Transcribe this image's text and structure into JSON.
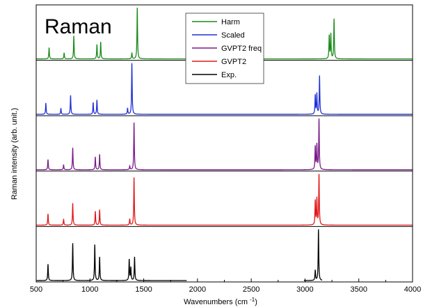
{
  "chart_data": {
    "type": "line",
    "title": "Raman",
    "xlabel": "Wavenumbers (cm -1)",
    "ylabel": "Raman intensity (arb. unit.)",
    "xlim": [
      500,
      4000
    ],
    "x_ticks": [
      500,
      1000,
      1500,
      2000,
      2500,
      3000,
      3500,
      4000
    ],
    "x_tick_labels": [
      "500",
      "1000",
      "1500",
      "2000",
      "2500",
      "3000",
      "3500",
      "4000"
    ],
    "y_ticks_shown": false,
    "grid": false,
    "stacked": true,
    "panel_separators": true,
    "legend": {
      "placement": "top-center",
      "order": [
        "Harm",
        "Scaled",
        "GVPT2 freq",
        "GVPT2",
        "Exp."
      ]
    },
    "series": [
      {
        "name": "Harm",
        "color": "#1a8a1a",
        "range": [
          500,
          4000
        ],
        "peaks": [
          {
            "x": 620,
            "y": 0.22
          },
          {
            "x": 760,
            "y": 0.12
          },
          {
            "x": 850,
            "y": 0.45
          },
          {
            "x": 1065,
            "y": 0.28
          },
          {
            "x": 1100,
            "y": 0.33
          },
          {
            "x": 1390,
            "y": 0.12
          },
          {
            "x": 1440,
            "y": 1.0
          },
          {
            "x": 3225,
            "y": 0.45
          },
          {
            "x": 3240,
            "y": 0.48
          },
          {
            "x": 3270,
            "y": 0.78
          }
        ]
      },
      {
        "name": "Scaled",
        "color": "#1f2fd6",
        "range": [
          500,
          4000
        ],
        "peaks": [
          {
            "x": 590,
            "y": 0.22
          },
          {
            "x": 730,
            "y": 0.12
          },
          {
            "x": 820,
            "y": 0.37
          },
          {
            "x": 1030,
            "y": 0.23
          },
          {
            "x": 1065,
            "y": 0.28
          },
          {
            "x": 1350,
            "y": 0.12
          },
          {
            "x": 1390,
            "y": 1.0
          },
          {
            "x": 3095,
            "y": 0.37
          },
          {
            "x": 3110,
            "y": 0.4
          },
          {
            "x": 3135,
            "y": 0.75
          }
        ]
      },
      {
        "name": "GVPT2 freq",
        "color": "#7a1a8a",
        "range": [
          500,
          4000
        ],
        "peaks": [
          {
            "x": 610,
            "y": 0.2
          },
          {
            "x": 755,
            "y": 0.1
          },
          {
            "x": 840,
            "y": 0.43
          },
          {
            "x": 1050,
            "y": 0.25
          },
          {
            "x": 1090,
            "y": 0.3
          },
          {
            "x": 1370,
            "y": 0.07
          },
          {
            "x": 1410,
            "y": 0.92
          },
          {
            "x": 3095,
            "y": 0.45
          },
          {
            "x": 3110,
            "y": 0.48
          },
          {
            "x": 3130,
            "y": 1.0
          }
        ]
      },
      {
        "name": "GVPT2",
        "color": "#e01818",
        "range": [
          500,
          4000
        ],
        "peaks": [
          {
            "x": 610,
            "y": 0.22
          },
          {
            "x": 755,
            "y": 0.12
          },
          {
            "x": 840,
            "y": 0.43
          },
          {
            "x": 1050,
            "y": 0.27
          },
          {
            "x": 1090,
            "y": 0.3
          },
          {
            "x": 1370,
            "y": 0.12
          },
          {
            "x": 1410,
            "y": 0.93
          },
          {
            "x": 3095,
            "y": 0.47
          },
          {
            "x": 3110,
            "y": 0.51
          },
          {
            "x": 3130,
            "y": 1.0
          }
        ]
      },
      {
        "name": "Exp.",
        "color": "#000000",
        "range": [
          500,
          1900
        ],
        "range_2": [
          2990,
          3160
        ],
        "peaks": [
          {
            "x": 610,
            "y": 0.32
          },
          {
            "x": 840,
            "y": 0.73
          },
          {
            "x": 1045,
            "y": 0.7
          },
          {
            "x": 1090,
            "y": 0.46
          },
          {
            "x": 1365,
            "y": 0.41
          },
          {
            "x": 1380,
            "y": 0.25
          },
          {
            "x": 1415,
            "y": 0.46
          },
          {
            "x": 3095,
            "y": 0.2
          },
          {
            "x": 3125,
            "y": 1.0
          }
        ]
      }
    ]
  }
}
